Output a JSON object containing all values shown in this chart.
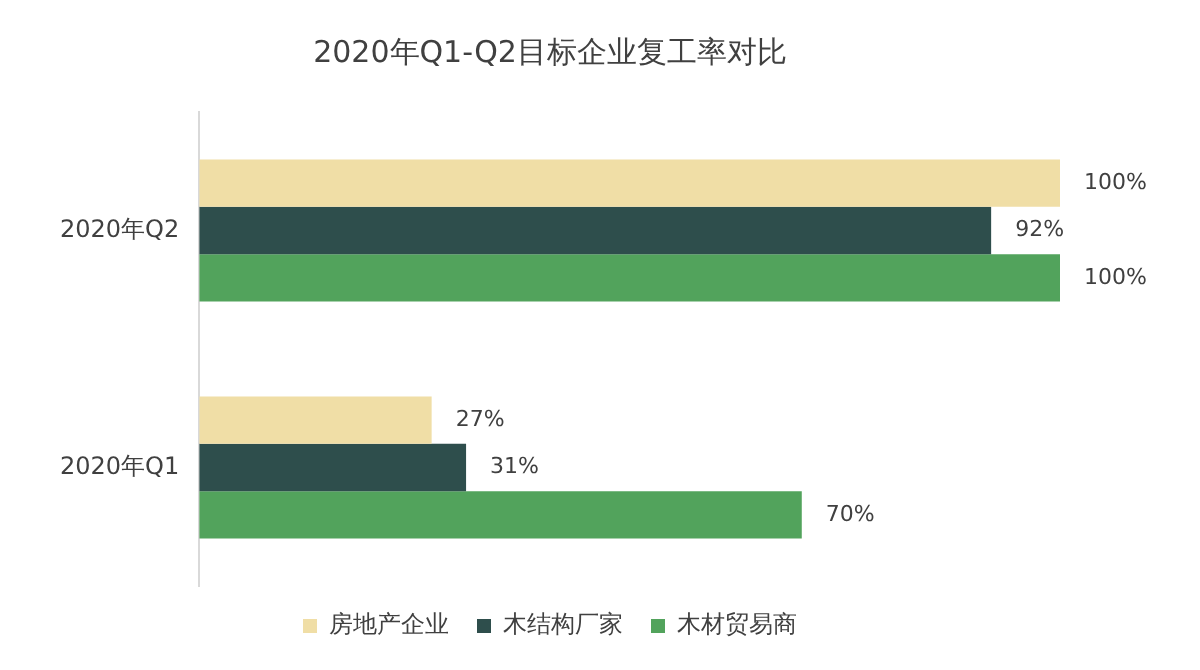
{
  "chart_data": {
    "type": "bar",
    "orientation": "horizontal",
    "title": "2020年Q1-Q2目标企业复工率对比",
    "categories": [
      "2020年Q2",
      "2020年Q1"
    ],
    "series": [
      {
        "name": "房地产企业",
        "color": "#f0dea6",
        "values": [
          100,
          27
        ],
        "value_labels": [
          "100%",
          "27%"
        ]
      },
      {
        "name": "木结构厂家",
        "color": "#2e4e4c",
        "values": [
          92,
          31
        ],
        "value_labels": [
          "92%",
          "31%"
        ]
      },
      {
        "name": "木材贸易商",
        "color": "#52a35c",
        "values": [
          100,
          70
        ],
        "value_labels": [
          "100%",
          "70%"
        ]
      }
    ],
    "legend": "bottom"
  }
}
